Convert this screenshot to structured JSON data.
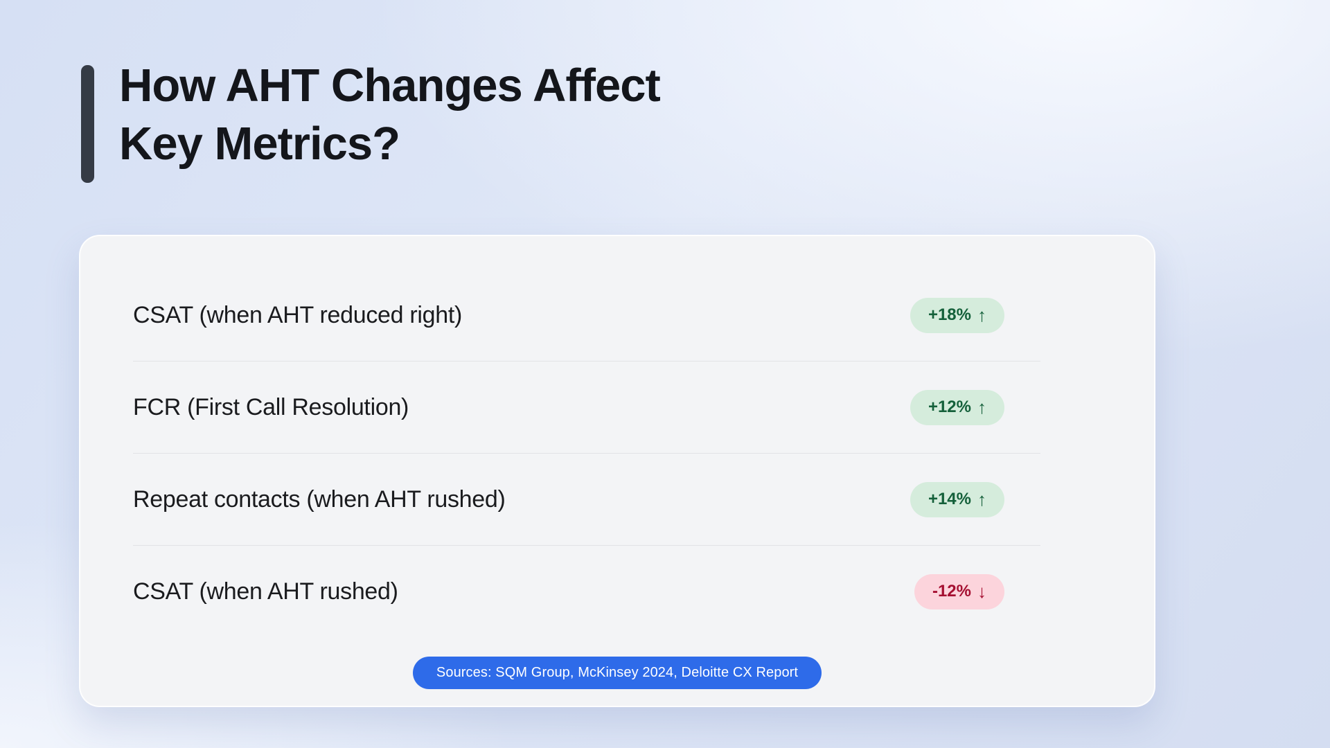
{
  "title": {
    "line1": "How AHT Changes Affect",
    "line2": "Key Metrics?"
  },
  "metrics": [
    {
      "label": "CSAT (when AHT reduced right)",
      "value": "+18%",
      "arrow": "↑",
      "trend": "up"
    },
    {
      "label": "FCR (First Call Resolution)",
      "value": "+12%",
      "arrow": "↑",
      "trend": "up"
    },
    {
      "label": "Repeat contacts (when AHT rushed)",
      "value": "+14%",
      "arrow": "↑",
      "trend": "up"
    },
    {
      "label": "CSAT (when AHT rushed)",
      "value": "-12%",
      "arrow": "↓",
      "trend": "down"
    }
  ],
  "sources": {
    "label": "Sources: SQM Group, McKinsey 2024, Deloitte CX Report"
  },
  "chart_data": {
    "type": "table",
    "title": "How AHT Changes Affect Key Metrics?",
    "categories": [
      "CSAT (when AHT reduced right)",
      "FCR (First Call Resolution)",
      "Repeat contacts (when AHT rushed)",
      "CSAT (when AHT rushed)"
    ],
    "values": [
      18,
      12,
      14,
      -12
    ],
    "unit": "%"
  },
  "colors": {
    "accent_blue": "#2e6be9",
    "badge_up_bg": "#d5ecdc",
    "badge_up_text": "#14603a",
    "badge_down_bg": "#fcd4dc",
    "badge_down_text": "#a50f31",
    "title_bar": "#353b45",
    "card_bg": "#f3f4f6"
  }
}
